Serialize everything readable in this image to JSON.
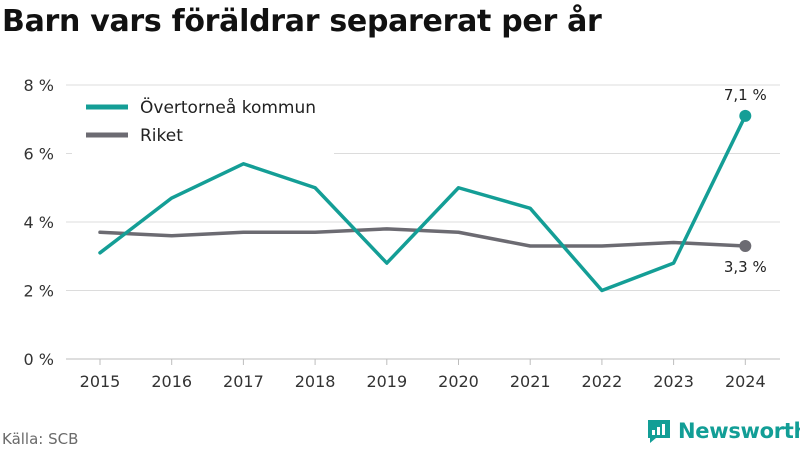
{
  "title": "Barn vars föräldrar separerat per år",
  "source": "Källa: SCB",
  "brand": "Newsworthy",
  "colors": {
    "primary": "#149e96",
    "secondary": "#6c6b72",
    "grid": "#dcdcdc"
  },
  "chart_data": {
    "type": "line",
    "categories": [
      "2015",
      "2016",
      "2017",
      "2018",
      "2019",
      "2020",
      "2021",
      "2022",
      "2023",
      "2024"
    ],
    "ylim": [
      0,
      8
    ],
    "yticks": [
      0,
      2,
      4,
      6,
      8
    ],
    "ytick_labels": [
      "0 %",
      "2 %",
      "4 %",
      "6 %",
      "8 %"
    ],
    "grid": true,
    "legend": "top-left",
    "series": [
      {
        "name": "Övertorneå kommun",
        "color": "#149e96",
        "values": [
          3.1,
          4.7,
          5.7,
          5.0,
          2.8,
          5.0,
          4.4,
          2.0,
          2.8,
          7.1
        ],
        "end_label": "7,1 %"
      },
      {
        "name": "Riket",
        "color": "#6c6b72",
        "values": [
          3.7,
          3.6,
          3.7,
          3.7,
          3.8,
          3.7,
          3.3,
          3.3,
          3.4,
          3.3
        ],
        "end_label": "3,3 %"
      }
    ]
  }
}
